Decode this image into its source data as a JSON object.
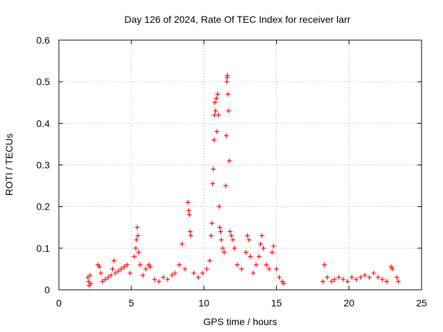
{
  "chart_data": {
    "type": "scatter",
    "title": "Day 126 of 2024, Rate Of TEC Index for receiver larr",
    "xlabel": "GPS time / hours",
    "ylabel": "ROTI / TECUs",
    "xlim": [
      0,
      25
    ],
    "ylim": [
      0,
      0.6
    ],
    "xticks": [
      "0",
      "5",
      "10",
      "15",
      "20",
      "25"
    ],
    "yticks": [
      "0",
      "0.1",
      "0.2",
      "0.3",
      "0.4",
      "0.5",
      "0.6"
    ],
    "grid": true,
    "marker": "+",
    "color": "#ff0000",
    "series": [
      {
        "name": "ROTI",
        "points": [
          [
            2.0,
            0.03
          ],
          [
            2.05,
            0.02
          ],
          [
            2.1,
            0.01
          ],
          [
            2.15,
            0.035
          ],
          [
            2.2,
            0.015
          ],
          [
            2.7,
            0.06
          ],
          [
            2.8,
            0.055
          ],
          [
            2.9,
            0.04
          ],
          [
            3.0,
            0.02
          ],
          [
            3.2,
            0.025
          ],
          [
            3.4,
            0.03
          ],
          [
            3.6,
            0.035
          ],
          [
            3.7,
            0.05
          ],
          [
            3.8,
            0.07
          ],
          [
            3.9,
            0.04
          ],
          [
            4.1,
            0.045
          ],
          [
            4.3,
            0.05
          ],
          [
            4.5,
            0.055
          ],
          [
            4.7,
            0.06
          ],
          [
            4.9,
            0.04
          ],
          [
            5.2,
            0.08
          ],
          [
            5.3,
            0.1
          ],
          [
            5.35,
            0.12
          ],
          [
            5.4,
            0.15
          ],
          [
            5.45,
            0.13
          ],
          [
            5.5,
            0.09
          ],
          [
            5.6,
            0.06
          ],
          [
            5.8,
            0.035
          ],
          [
            6.0,
            0.05
          ],
          [
            6.2,
            0.06
          ],
          [
            6.3,
            0.055
          ],
          [
            6.6,
            0.025
          ],
          [
            6.9,
            0.02
          ],
          [
            7.2,
            0.03
          ],
          [
            7.5,
            0.025
          ],
          [
            7.8,
            0.035
          ],
          [
            8.0,
            0.04
          ],
          [
            8.3,
            0.06
          ],
          [
            8.5,
            0.11
          ],
          [
            8.7,
            0.05
          ],
          [
            8.9,
            0.21
          ],
          [
            8.95,
            0.19
          ],
          [
            9.0,
            0.18
          ],
          [
            9.05,
            0.14
          ],
          [
            9.1,
            0.13
          ],
          [
            9.3,
            0.04
          ],
          [
            9.6,
            0.03
          ],
          [
            9.9,
            0.04
          ],
          [
            10.2,
            0.05
          ],
          [
            10.4,
            0.07
          ],
          [
            10.5,
            0.13
          ],
          [
            10.55,
            0.16
          ],
          [
            10.6,
            0.255
          ],
          [
            10.65,
            0.29
          ],
          [
            10.7,
            0.36
          ],
          [
            10.72,
            0.42
          ],
          [
            10.75,
            0.45
          ],
          [
            10.8,
            0.43
          ],
          [
            10.85,
            0.46
          ],
          [
            10.9,
            0.38
          ],
          [
            10.95,
            0.47
          ],
          [
            11.0,
            0.42
          ],
          [
            11.05,
            0.2
          ],
          [
            11.1,
            0.15
          ],
          [
            11.15,
            0.14
          ],
          [
            11.2,
            0.12
          ],
          [
            11.3,
            0.1
          ],
          [
            11.4,
            0.09
          ],
          [
            11.5,
            0.25
          ],
          [
            11.55,
            0.37
          ],
          [
            11.58,
            0.5
          ],
          [
            11.6,
            0.51
          ],
          [
            11.62,
            0.515
          ],
          [
            11.65,
            0.47
          ],
          [
            11.7,
            0.43
          ],
          [
            11.75,
            0.31
          ],
          [
            11.8,
            0.14
          ],
          [
            11.9,
            0.13
          ],
          [
            12.0,
            0.12
          ],
          [
            12.1,
            0.1
          ],
          [
            12.3,
            0.06
          ],
          [
            12.6,
            0.05
          ],
          [
            12.9,
            0.09
          ],
          [
            13.0,
            0.13
          ],
          [
            13.1,
            0.12
          ],
          [
            13.2,
            0.08
          ],
          [
            13.4,
            0.04
          ],
          [
            13.6,
            0.06
          ],
          [
            13.8,
            0.08
          ],
          [
            13.9,
            0.11
          ],
          [
            14.0,
            0.13
          ],
          [
            14.1,
            0.1
          ],
          [
            14.3,
            0.06
          ],
          [
            14.5,
            0.05
          ],
          [
            14.7,
            0.09
          ],
          [
            14.8,
            0.105
          ],
          [
            15.0,
            0.05
          ],
          [
            15.2,
            0.03
          ],
          [
            15.4,
            0.02
          ],
          [
            15.5,
            0.015
          ],
          [
            18.2,
            0.02
          ],
          [
            18.3,
            0.06
          ],
          [
            18.5,
            0.03
          ],
          [
            18.8,
            0.02
          ],
          [
            19.0,
            0.025
          ],
          [
            19.3,
            0.03
          ],
          [
            19.6,
            0.025
          ],
          [
            19.9,
            0.02
          ],
          [
            20.2,
            0.03
          ],
          [
            20.5,
            0.025
          ],
          [
            20.8,
            0.03
          ],
          [
            21.1,
            0.035
          ],
          [
            21.4,
            0.03
          ],
          [
            21.7,
            0.04
          ],
          [
            22.0,
            0.03
          ],
          [
            22.3,
            0.025
          ],
          [
            22.6,
            0.02
          ],
          [
            22.9,
            0.055
          ],
          [
            23.0,
            0.05
          ],
          [
            23.3,
            0.03
          ],
          [
            23.4,
            0.02
          ]
        ]
      }
    ]
  }
}
